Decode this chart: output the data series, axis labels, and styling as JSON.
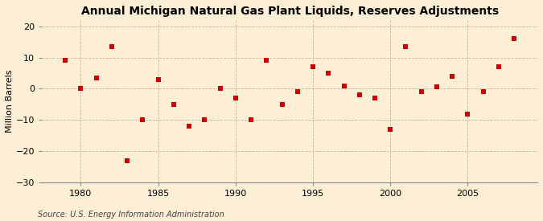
{
  "title": "Annual Michigan Natural Gas Plant Liquids, Reserves Adjustments",
  "ylabel": "Million Barrels",
  "source": "Source: U.S. Energy Information Administration",
  "years": [
    1979,
    1980,
    1981,
    1982,
    1983,
    1984,
    1985,
    1986,
    1987,
    1988,
    1989,
    1990,
    1991,
    1992,
    1993,
    1994,
    1995,
    1996,
    1997,
    1998,
    1999,
    2000,
    2001,
    2002,
    2003,
    2004,
    2005,
    2006,
    2007,
    2008
  ],
  "values": [
    9,
    0,
    3.5,
    13.5,
    -23,
    -10,
    3,
    -5,
    -12,
    -10,
    0,
    -3,
    -10,
    9,
    -5,
    -1,
    7,
    5,
    1,
    -2,
    -3,
    -13,
    13.5,
    -1,
    0.5,
    4,
    -8,
    -1,
    7,
    16
  ],
  "xlim": [
    1977.5,
    2009.5
  ],
  "ylim": [
    -30,
    22
  ],
  "yticks": [
    -30,
    -20,
    -10,
    0,
    10,
    20
  ],
  "xticks": [
    1980,
    1985,
    1990,
    1995,
    2000,
    2005
  ],
  "marker_color": "#cc0000",
  "marker_size": 18,
  "bg_color": "#fcefd5",
  "grid_color": "#c8b89a",
  "title_fontsize": 10,
  "label_fontsize": 8,
  "tick_fontsize": 8,
  "source_fontsize": 7
}
